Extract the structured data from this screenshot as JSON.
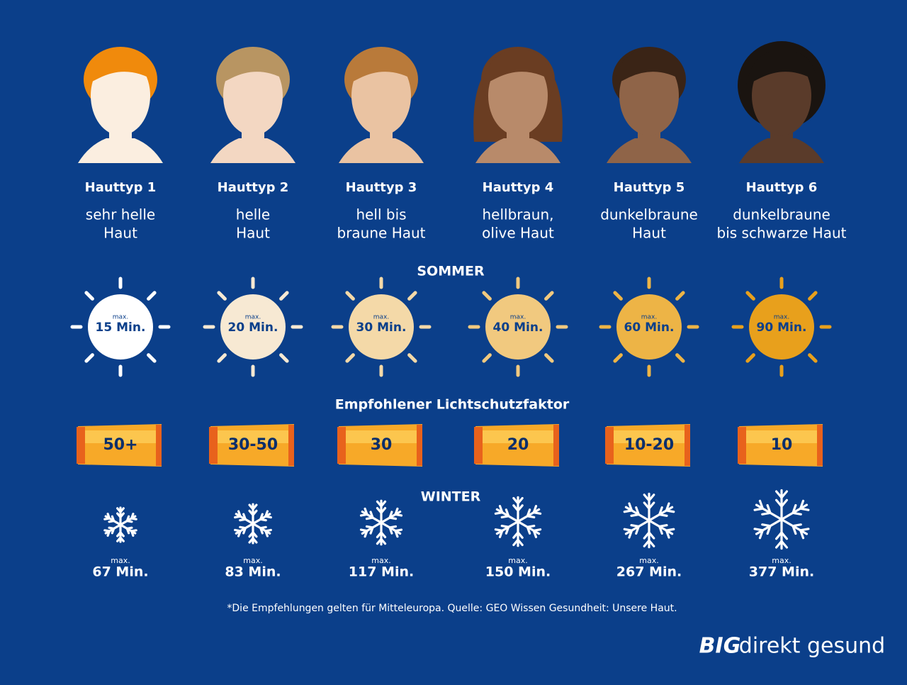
{
  "types": [
    {
      "title": "Hauttyp 1",
      "description": [
        "sehr helle",
        "Haut"
      ],
      "summer": {
        "label": "max.",
        "time": "15 Min."
      },
      "spf": "50+",
      "winter": {
        "label": "max.",
        "time": "67 Min."
      }
    },
    {
      "title": "Hauttyp 2",
      "description": [
        "helle",
        "Haut"
      ],
      "summer": {
        "label": "max.",
        "time": "20 Min."
      },
      "spf": "30-50",
      "winter": {
        "label": "max.",
        "time": "83 Min."
      }
    },
    {
      "title": "Hauttyp 3",
      "description": [
        "hell bis",
        "braune Haut"
      ],
      "summer": {
        "label": "max.",
        "time": "30 Min."
      },
      "spf": "30",
      "winter": {
        "label": "max.",
        "time": "117 Min."
      }
    },
    {
      "title": "Hauttyp 4",
      "description": [
        "hellbraun,",
        "olive Haut"
      ],
      "summer": {
        "label": "max.",
        "time": "40 Min."
      },
      "spf": "20",
      "winter": {
        "label": "max.",
        "time": "150 Min."
      }
    },
    {
      "title": "Hauttyp 5",
      "description": [
        "dunkelbraune",
        "Haut"
      ],
      "summer": {
        "label": "max.",
        "time": "60 Min."
      },
      "spf": "10-20",
      "winter": {
        "label": "max.",
        "time": "267 Min."
      }
    },
    {
      "title": "Hauttyp 6",
      "description": [
        "dunkelbraune",
        "bis schwarze Haut"
      ],
      "summer": {
        "label": "max.",
        "time": "90 Min."
      },
      "spf": "10",
      "winter": {
        "label": "max.",
        "time": "377 Min."
      }
    }
  ],
  "headings": {
    "summer": "SOMMER",
    "spf": "Empfohlener Lichtschutzfaktor",
    "winter": "WINTER"
  },
  "footnote": "*Die Empfehlungen gelten für Mitteleuropa. Quelle: GEO Wissen Gesundheit: Unsere Haut.",
  "logo": {
    "mark": "BIG",
    "text": "direkt gesund"
  }
}
